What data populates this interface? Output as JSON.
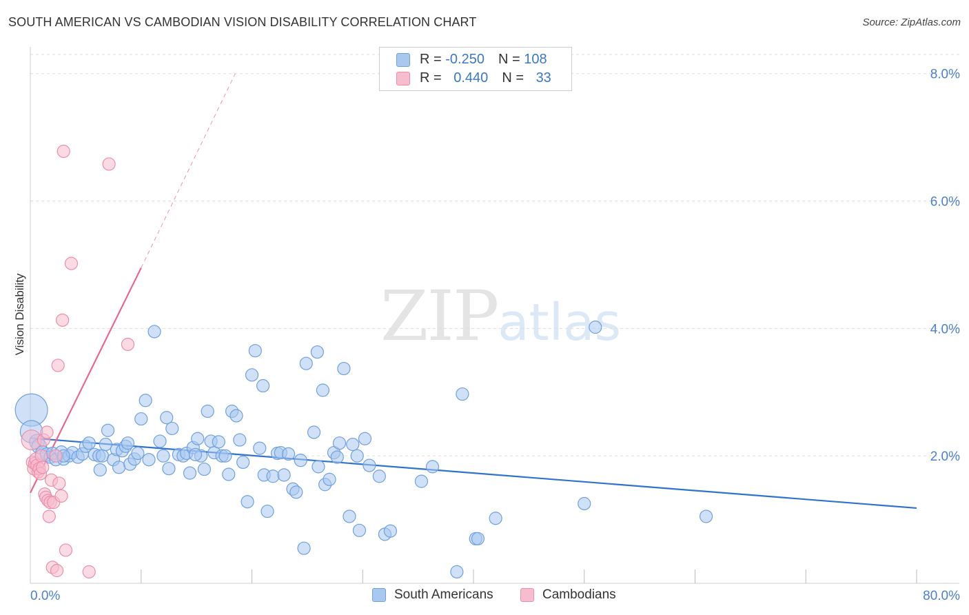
{
  "title": "SOUTH AMERICAN VS CAMBODIAN VISION DISABILITY CORRELATION CHART",
  "source": "Source: ZipAtlas.com",
  "watermark": {
    "zip": "ZIP",
    "atlas": "atlas"
  },
  "legend": {
    "rows": [
      {
        "r_label": "R = ",
        "r_value": "-0.250",
        "n_label": "N = ",
        "n_value": "108"
      },
      {
        "r_label": "R = ",
        "r_value": "0.440",
        "n_label": "N = ",
        "n_value": "33"
      }
    ]
  },
  "bottom_legend": {
    "south": "South Americans",
    "cambodian": "Cambodians"
  },
  "colors": {
    "blue_fill": "#a9c8f0",
    "blue_stroke": "#6fa0e0",
    "blue_line": "#2f72cf",
    "pink_fill": "#f7bccd",
    "pink_stroke": "#ec8eab",
    "pink_line": "#e8668f",
    "grid": "#dddddd",
    "tick_text": "#4a80d0"
  },
  "chart_data": {
    "type": "scatter",
    "title": "SOUTH AMERICAN VS CAMBODIAN VISION DISABILITY CORRELATION CHART",
    "xlabel": "",
    "ylabel": "Vision Disability",
    "xlim": [
      0,
      80
    ],
    "ylim": [
      0,
      8.3
    ],
    "x_tick_labels": [
      "0.0%",
      "80.0%"
    ],
    "y_ticks": [
      2,
      4,
      6,
      8
    ],
    "y_tick_labels": [
      "2.0%",
      "4.0%",
      "6.0%",
      "8.0%"
    ],
    "grid": true,
    "legend_position": "top-center",
    "series": [
      {
        "name": "South Americans",
        "R": -0.25,
        "N": 108,
        "trend": {
          "x0": 0,
          "y0": 2.28,
          "x1": 80,
          "y1": 1.18
        },
        "points": [
          [
            0.1,
            2.72,
            2.6
          ],
          [
            0.1,
            2.38,
            1.8
          ],
          [
            0.6,
            2.22,
            1.2
          ],
          [
            0.8,
            2.15,
            1.2
          ],
          [
            1.1,
            2.05,
            1.1
          ],
          [
            1.5,
            2.02,
            1.1
          ],
          [
            1.8,
            1.98,
            1.0
          ],
          [
            2.0,
            2.04,
            1.0
          ],
          [
            2.3,
            1.94,
            1.0
          ],
          [
            2.8,
            2.06,
            1.0
          ],
          [
            3.0,
            1.95,
            1.0
          ],
          [
            3.5,
            2.0,
            1.0
          ],
          [
            3.8,
            2.05,
            1.0
          ],
          [
            4.3,
            1.98,
            1.0
          ],
          [
            4.7,
            2.03,
            1.0
          ],
          [
            5.0,
            2.15,
            1.0
          ],
          [
            5.3,
            2.2,
            1.0
          ],
          [
            5.8,
            2.02,
            1.0
          ],
          [
            6.2,
            2.0,
            1.0
          ],
          [
            6.3,
            1.78,
            1.0
          ],
          [
            6.5,
            2.0,
            1.0
          ],
          [
            6.8,
            2.18,
            1.0
          ],
          [
            7.0,
            2.4,
            1.0
          ],
          [
            7.5,
            1.94,
            1.0
          ],
          [
            7.8,
            2.1,
            1.0
          ],
          [
            8.0,
            1.82,
            1.0
          ],
          [
            8.3,
            2.08,
            1.0
          ],
          [
            8.6,
            2.15,
            1.0
          ],
          [
            8.8,
            2.2,
            1.0
          ],
          [
            9.0,
            1.87,
            1.0
          ],
          [
            9.4,
            1.95,
            1.0
          ],
          [
            9.7,
            2.04,
            1.0
          ],
          [
            10.0,
            2.58,
            1.0
          ],
          [
            10.4,
            2.87,
            1.0
          ],
          [
            10.7,
            1.94,
            1.0
          ],
          [
            11.2,
            3.95,
            1.0
          ],
          [
            11.7,
            2.23,
            1.0
          ],
          [
            12.0,
            2.0,
            1.0
          ],
          [
            12.3,
            2.6,
            1.0
          ],
          [
            12.5,
            1.8,
            1.0
          ],
          [
            12.8,
            2.43,
            1.0
          ],
          [
            13.4,
            2.02,
            1.0
          ],
          [
            13.8,
            2.0,
            1.0
          ],
          [
            14.1,
            2.04,
            1.0
          ],
          [
            14.4,
            1.73,
            1.0
          ],
          [
            14.7,
            2.13,
            1.0
          ],
          [
            15.1,
            2.27,
            1.0
          ],
          [
            15.4,
            2.0,
            1.0
          ],
          [
            15.7,
            1.79,
            1.0
          ],
          [
            16.0,
            2.7,
            1.0
          ],
          [
            16.3,
            2.23,
            1.0
          ],
          [
            16.6,
            2.05,
            1.0
          ],
          [
            17.0,
            2.22,
            1.0
          ],
          [
            17.3,
            2.0,
            1.0
          ],
          [
            17.6,
            2.0,
            1.0
          ],
          [
            17.9,
            1.71,
            1.0
          ],
          [
            18.2,
            2.7,
            1.0
          ],
          [
            18.6,
            2.63,
            1.0
          ],
          [
            18.9,
            2.25,
            1.0
          ],
          [
            19.2,
            1.9,
            1.0
          ],
          [
            19.6,
            1.28,
            1.0
          ],
          [
            20.0,
            3.27,
            1.0
          ],
          [
            20.3,
            3.65,
            1.0
          ],
          [
            20.7,
            2.12,
            1.0
          ],
          [
            21.0,
            3.1,
            1.0
          ],
          [
            21.1,
            1.7,
            1.0
          ],
          [
            21.4,
            1.13,
            1.0
          ],
          [
            21.9,
            1.68,
            1.0
          ],
          [
            22.3,
            2.04,
            1.0
          ],
          [
            22.6,
            2.05,
            1.0
          ],
          [
            22.9,
            1.7,
            1.0
          ],
          [
            23.3,
            2.03,
            1.0
          ],
          [
            23.7,
            1.48,
            1.0
          ],
          [
            24.0,
            1.43,
            1.0
          ],
          [
            24.4,
            1.93,
            1.0
          ],
          [
            24.7,
            0.55,
            1.0
          ],
          [
            24.9,
            3.45,
            1.0
          ],
          [
            25.6,
            2.37,
            1.0
          ],
          [
            25.9,
            3.63,
            1.0
          ],
          [
            26.0,
            1.83,
            1.0
          ],
          [
            26.4,
            3.03,
            1.0
          ],
          [
            26.6,
            1.55,
            1.0
          ],
          [
            27.0,
            1.63,
            1.0
          ],
          [
            27.4,
            2.05,
            1.0
          ],
          [
            27.7,
            1.98,
            1.0
          ],
          [
            27.9,
            2.2,
            1.0
          ],
          [
            28.3,
            3.37,
            1.0
          ],
          [
            28.8,
            1.05,
            1.0
          ],
          [
            29.1,
            2.18,
            1.0
          ],
          [
            29.5,
            2.0,
            1.0
          ],
          [
            29.7,
            0.83,
            1.0
          ],
          [
            30.2,
            2.27,
            1.0
          ],
          [
            30.6,
            1.85,
            1.0
          ],
          [
            31.5,
            1.68,
            1.0
          ],
          [
            32.0,
            0.77,
            1.0
          ],
          [
            32.5,
            0.82,
            1.0
          ],
          [
            35.3,
            1.6,
            1.0
          ],
          [
            36.3,
            1.83,
            1.0
          ],
          [
            38.5,
            0.18,
            1.0
          ],
          [
            39.0,
            2.97,
            1.0
          ],
          [
            40.2,
            0.7,
            1.0
          ],
          [
            40.4,
            0.7,
            1.0
          ],
          [
            42.0,
            1.02,
            1.0
          ],
          [
            50.0,
            1.25,
            1.0
          ],
          [
            51.0,
            4.02,
            1.0
          ],
          [
            61.0,
            1.05,
            1.0
          ],
          [
            3.0,
            2.0,
            1.0
          ],
          [
            14.9,
            2.02,
            1.0
          ]
        ]
      },
      {
        "name": "Cambodians",
        "R": 0.44,
        "N": 33,
        "trend": {
          "x0": 0,
          "y0": 1.42,
          "x1": 10,
          "y1": 4.95,
          "dash_to_x": 18.5,
          "dash_to_y": 8.0
        },
        "points": [
          [
            0.1,
            2.25,
            1.6
          ],
          [
            0.2,
            1.9,
            1.0
          ],
          [
            0.3,
            1.8,
            1.0
          ],
          [
            0.4,
            1.88,
            1.0
          ],
          [
            0.5,
            1.95,
            1.0
          ],
          [
            0.6,
            1.85,
            1.0
          ],
          [
            0.7,
            1.75,
            1.0
          ],
          [
            0.8,
            1.8,
            1.0
          ],
          [
            0.9,
            1.72,
            1.0
          ],
          [
            1.0,
            2.0,
            1.0
          ],
          [
            1.1,
            1.82,
            1.0
          ],
          [
            1.2,
            2.25,
            1.0
          ],
          [
            1.3,
            1.4,
            1.0
          ],
          [
            1.4,
            1.35,
            1.0
          ],
          [
            1.5,
            2.37,
            1.0
          ],
          [
            1.6,
            1.3,
            1.0
          ],
          [
            1.7,
            1.05,
            1.0
          ],
          [
            1.8,
            1.27,
            1.0
          ],
          [
            1.9,
            1.62,
            1.0
          ],
          [
            2.0,
            0.25,
            1.0
          ],
          [
            2.1,
            1.27,
            1.0
          ],
          [
            2.3,
            2.0,
            1.0
          ],
          [
            2.4,
            0.2,
            1.0
          ],
          [
            2.5,
            3.42,
            1.0
          ],
          [
            2.6,
            1.57,
            1.0
          ],
          [
            2.8,
            1.37,
            1.0
          ],
          [
            2.9,
            4.13,
            1.0
          ],
          [
            3.0,
            6.78,
            1.0
          ],
          [
            3.2,
            0.52,
            1.0
          ],
          [
            3.7,
            5.02,
            1.0
          ],
          [
            5.3,
            0.18,
            1.0
          ],
          [
            7.1,
            6.58,
            1.0
          ],
          [
            8.8,
            3.75,
            1.0
          ]
        ]
      }
    ]
  }
}
